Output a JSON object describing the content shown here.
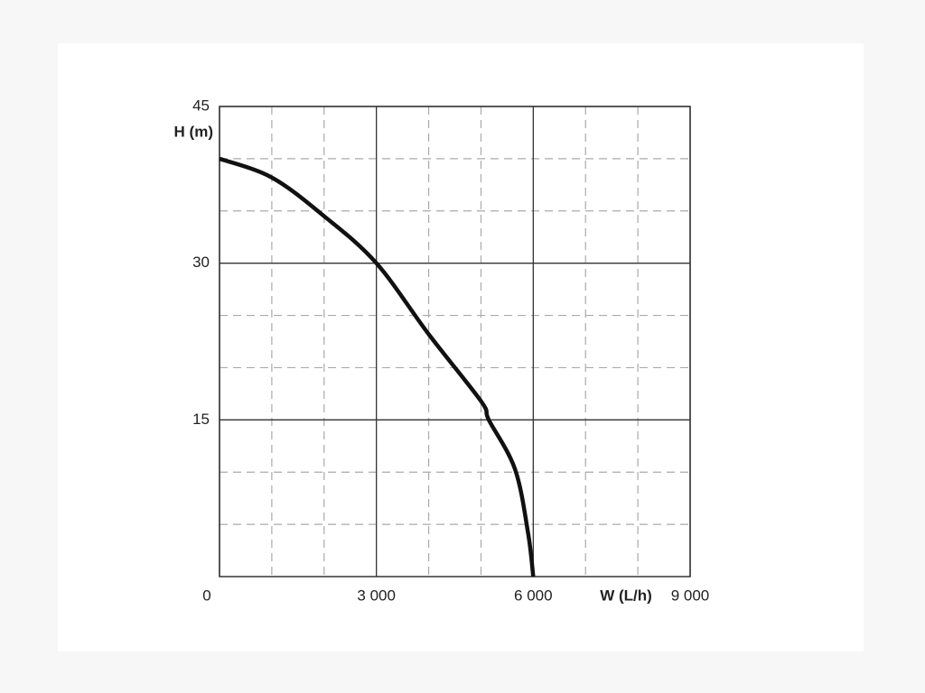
{
  "chart_data": {
    "type": "line",
    "x_label": "W (L/h)",
    "y_label": "H (m)",
    "x": [
      0,
      1000,
      2000,
      3000,
      4000,
      5000,
      5150,
      5650,
      5900,
      6000
    ],
    "series": [
      {
        "color": "#111111",
        "values": [
          40,
          38.2,
          34.5,
          30,
          23.2,
          16.8,
          15,
          10.3,
          4.2,
          0
        ]
      }
    ],
    "xlim": [
      0,
      9000
    ],
    "xticks": [
      0,
      {
        "value": 3000,
        "label": "3 000"
      },
      {
        "value": 6000,
        "label": "6 000"
      },
      {
        "value": 9000,
        "label": "9 000"
      }
    ],
    "ylim": [
      0,
      45
    ],
    "yticks": [
      15,
      30,
      45
    ],
    "x_minor_ticks": [
      1000,
      2000,
      4000,
      5000,
      7000,
      8000
    ],
    "y_minor_ticks": [
      5,
      10,
      20,
      25,
      35,
      40
    ],
    "grid": true
  }
}
